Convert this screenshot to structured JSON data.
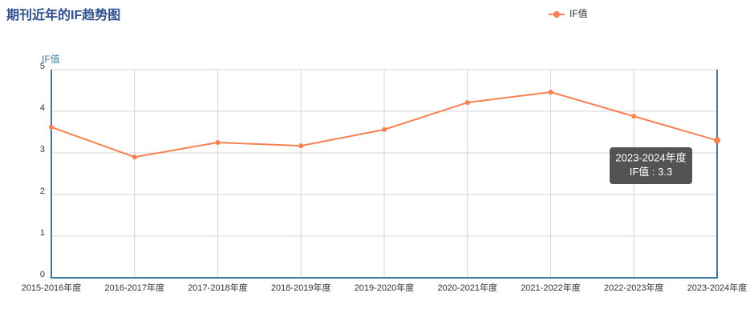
{
  "chart_data": {
    "type": "line",
    "title": "期刊近年的IF趋势图",
    "y_label": "IF值",
    "categories": [
      "2015-2016年度",
      "2016-2017年度",
      "2017-2018年度",
      "2018-2019年度",
      "2019-2020年度",
      "2020-2021年度",
      "2021-2022年度",
      "2022-2023年度",
      "2023-2024年度"
    ],
    "series": [
      {
        "name": "IF值",
        "color": "#f8814f",
        "values": [
          3.62,
          2.9,
          3.25,
          3.17,
          3.56,
          4.21,
          4.46,
          3.88,
          3.3
        ]
      }
    ],
    "ylim": [
      0,
      5
    ],
    "yticks": [
      0,
      1,
      2,
      3,
      4,
      5
    ],
    "grid": true,
    "legend": "top-right",
    "tooltip": {
      "index": 8,
      "separator": " : "
    }
  }
}
